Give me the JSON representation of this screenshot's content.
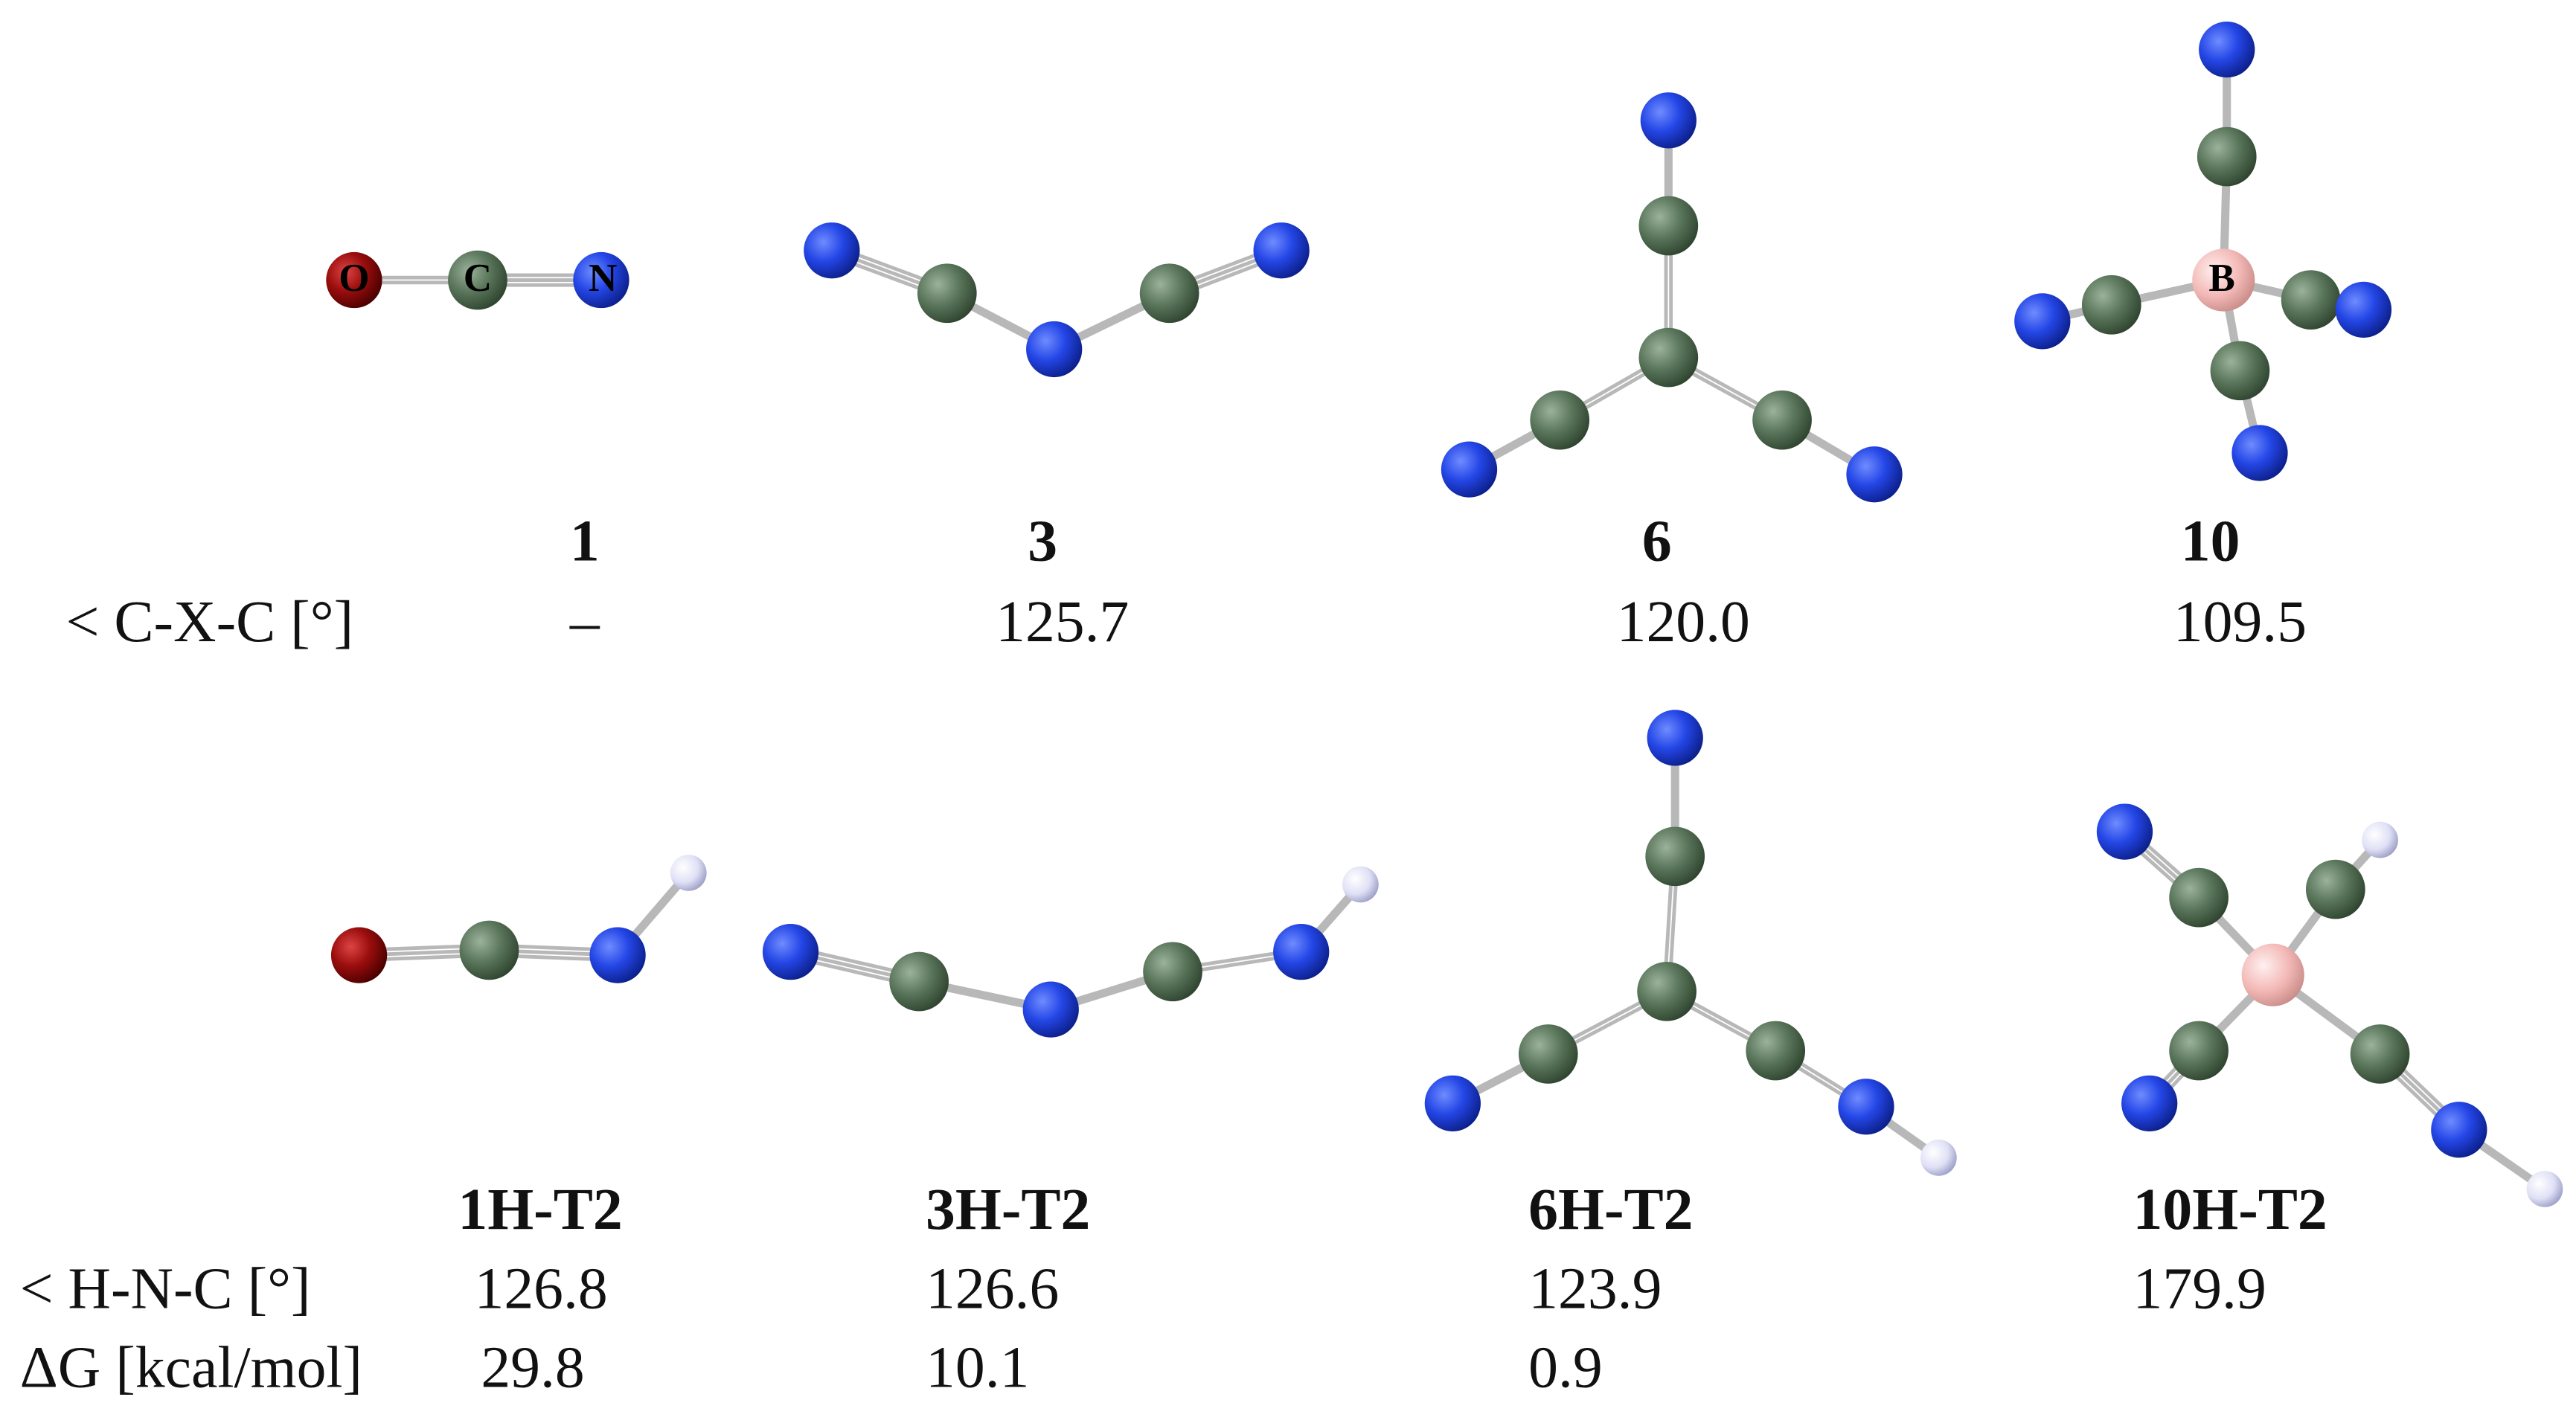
{
  "atom_labels": [
    "O",
    "C",
    "N",
    "B"
  ],
  "top": {
    "names": [
      "1",
      "3",
      "6",
      "10"
    ],
    "row_label": "< C-X-C [°]",
    "values": [
      "–",
      "125.7",
      "120.0",
      "109.5"
    ]
  },
  "bottom": {
    "names": [
      "1H-T2",
      "3H-T2",
      "6H-T2",
      "10H-T2"
    ],
    "rows": [
      {
        "label": "< H-N-C [°]",
        "values": [
          "126.8",
          "126.6",
          "123.9",
          "179.9"
        ]
      },
      {
        "label": "ΔG [kcal/mol]",
        "values": [
          "29.8",
          "10.1",
          "0.9"
        ]
      }
    ]
  }
}
